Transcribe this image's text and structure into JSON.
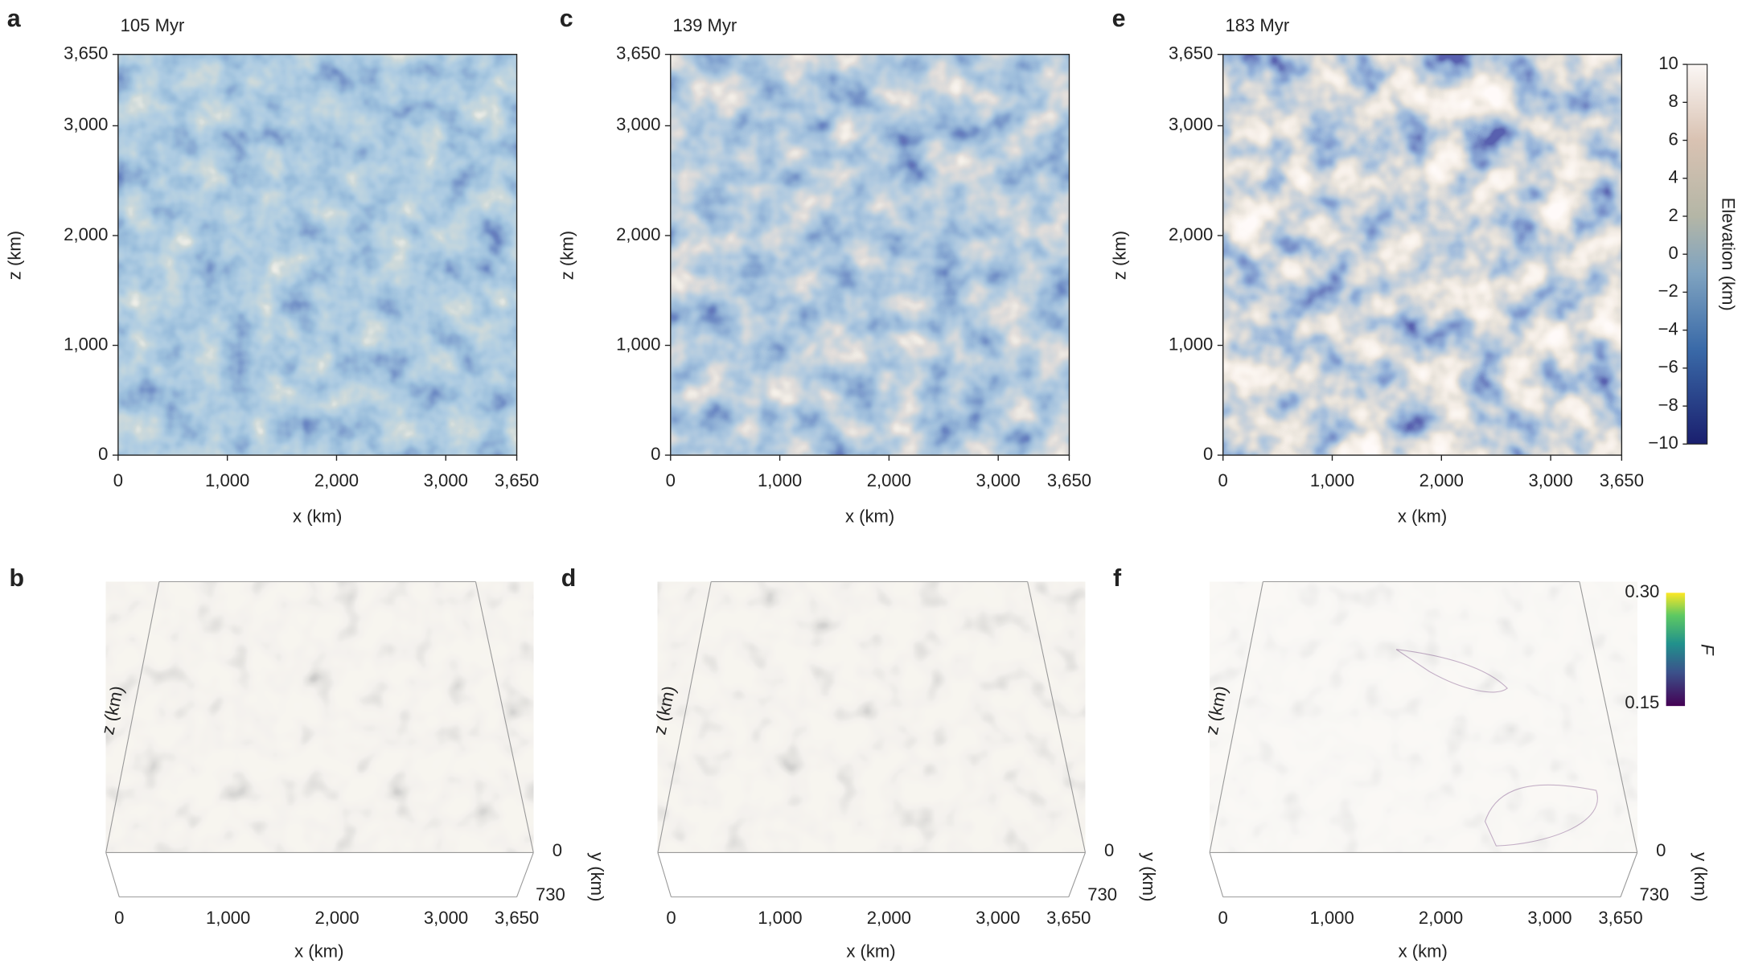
{
  "panels_2d": [
    {
      "letter": "a",
      "title": "105 Myr"
    },
    {
      "letter": "c",
      "title": "139 Myr"
    },
    {
      "letter": "e",
      "title": "183 Myr"
    }
  ],
  "panels_3d": [
    {
      "letter": "b"
    },
    {
      "letter": "d"
    },
    {
      "letter": "f"
    }
  ],
  "map_axes": {
    "x_label": "x (km)",
    "z_label": "z (km)",
    "x_ticks": [
      "0",
      "1,000",
      "2,000",
      "3,000",
      "3,650"
    ],
    "z_ticks": [
      "3,650",
      "3,000",
      "2,000",
      "1,000",
      "0"
    ]
  },
  "elevation_colorbar": {
    "label": "Elevation (km)",
    "ticks": [
      "10",
      "8",
      "6",
      "4",
      "2",
      "0",
      "−2",
      "−4",
      "−6",
      "−8",
      "−10"
    ]
  },
  "box_axes": {
    "x_label": "x (km)",
    "z_label": "z (km)",
    "y_label": "y (km)",
    "x_ticks": [
      "0",
      "1,000",
      "2,000",
      "3,000",
      "3,650"
    ],
    "y_ticks": [
      "0",
      "730"
    ]
  },
  "f_colorbar": {
    "label": "F",
    "ticks": [
      "0.30",
      "0.15"
    ]
  }
}
